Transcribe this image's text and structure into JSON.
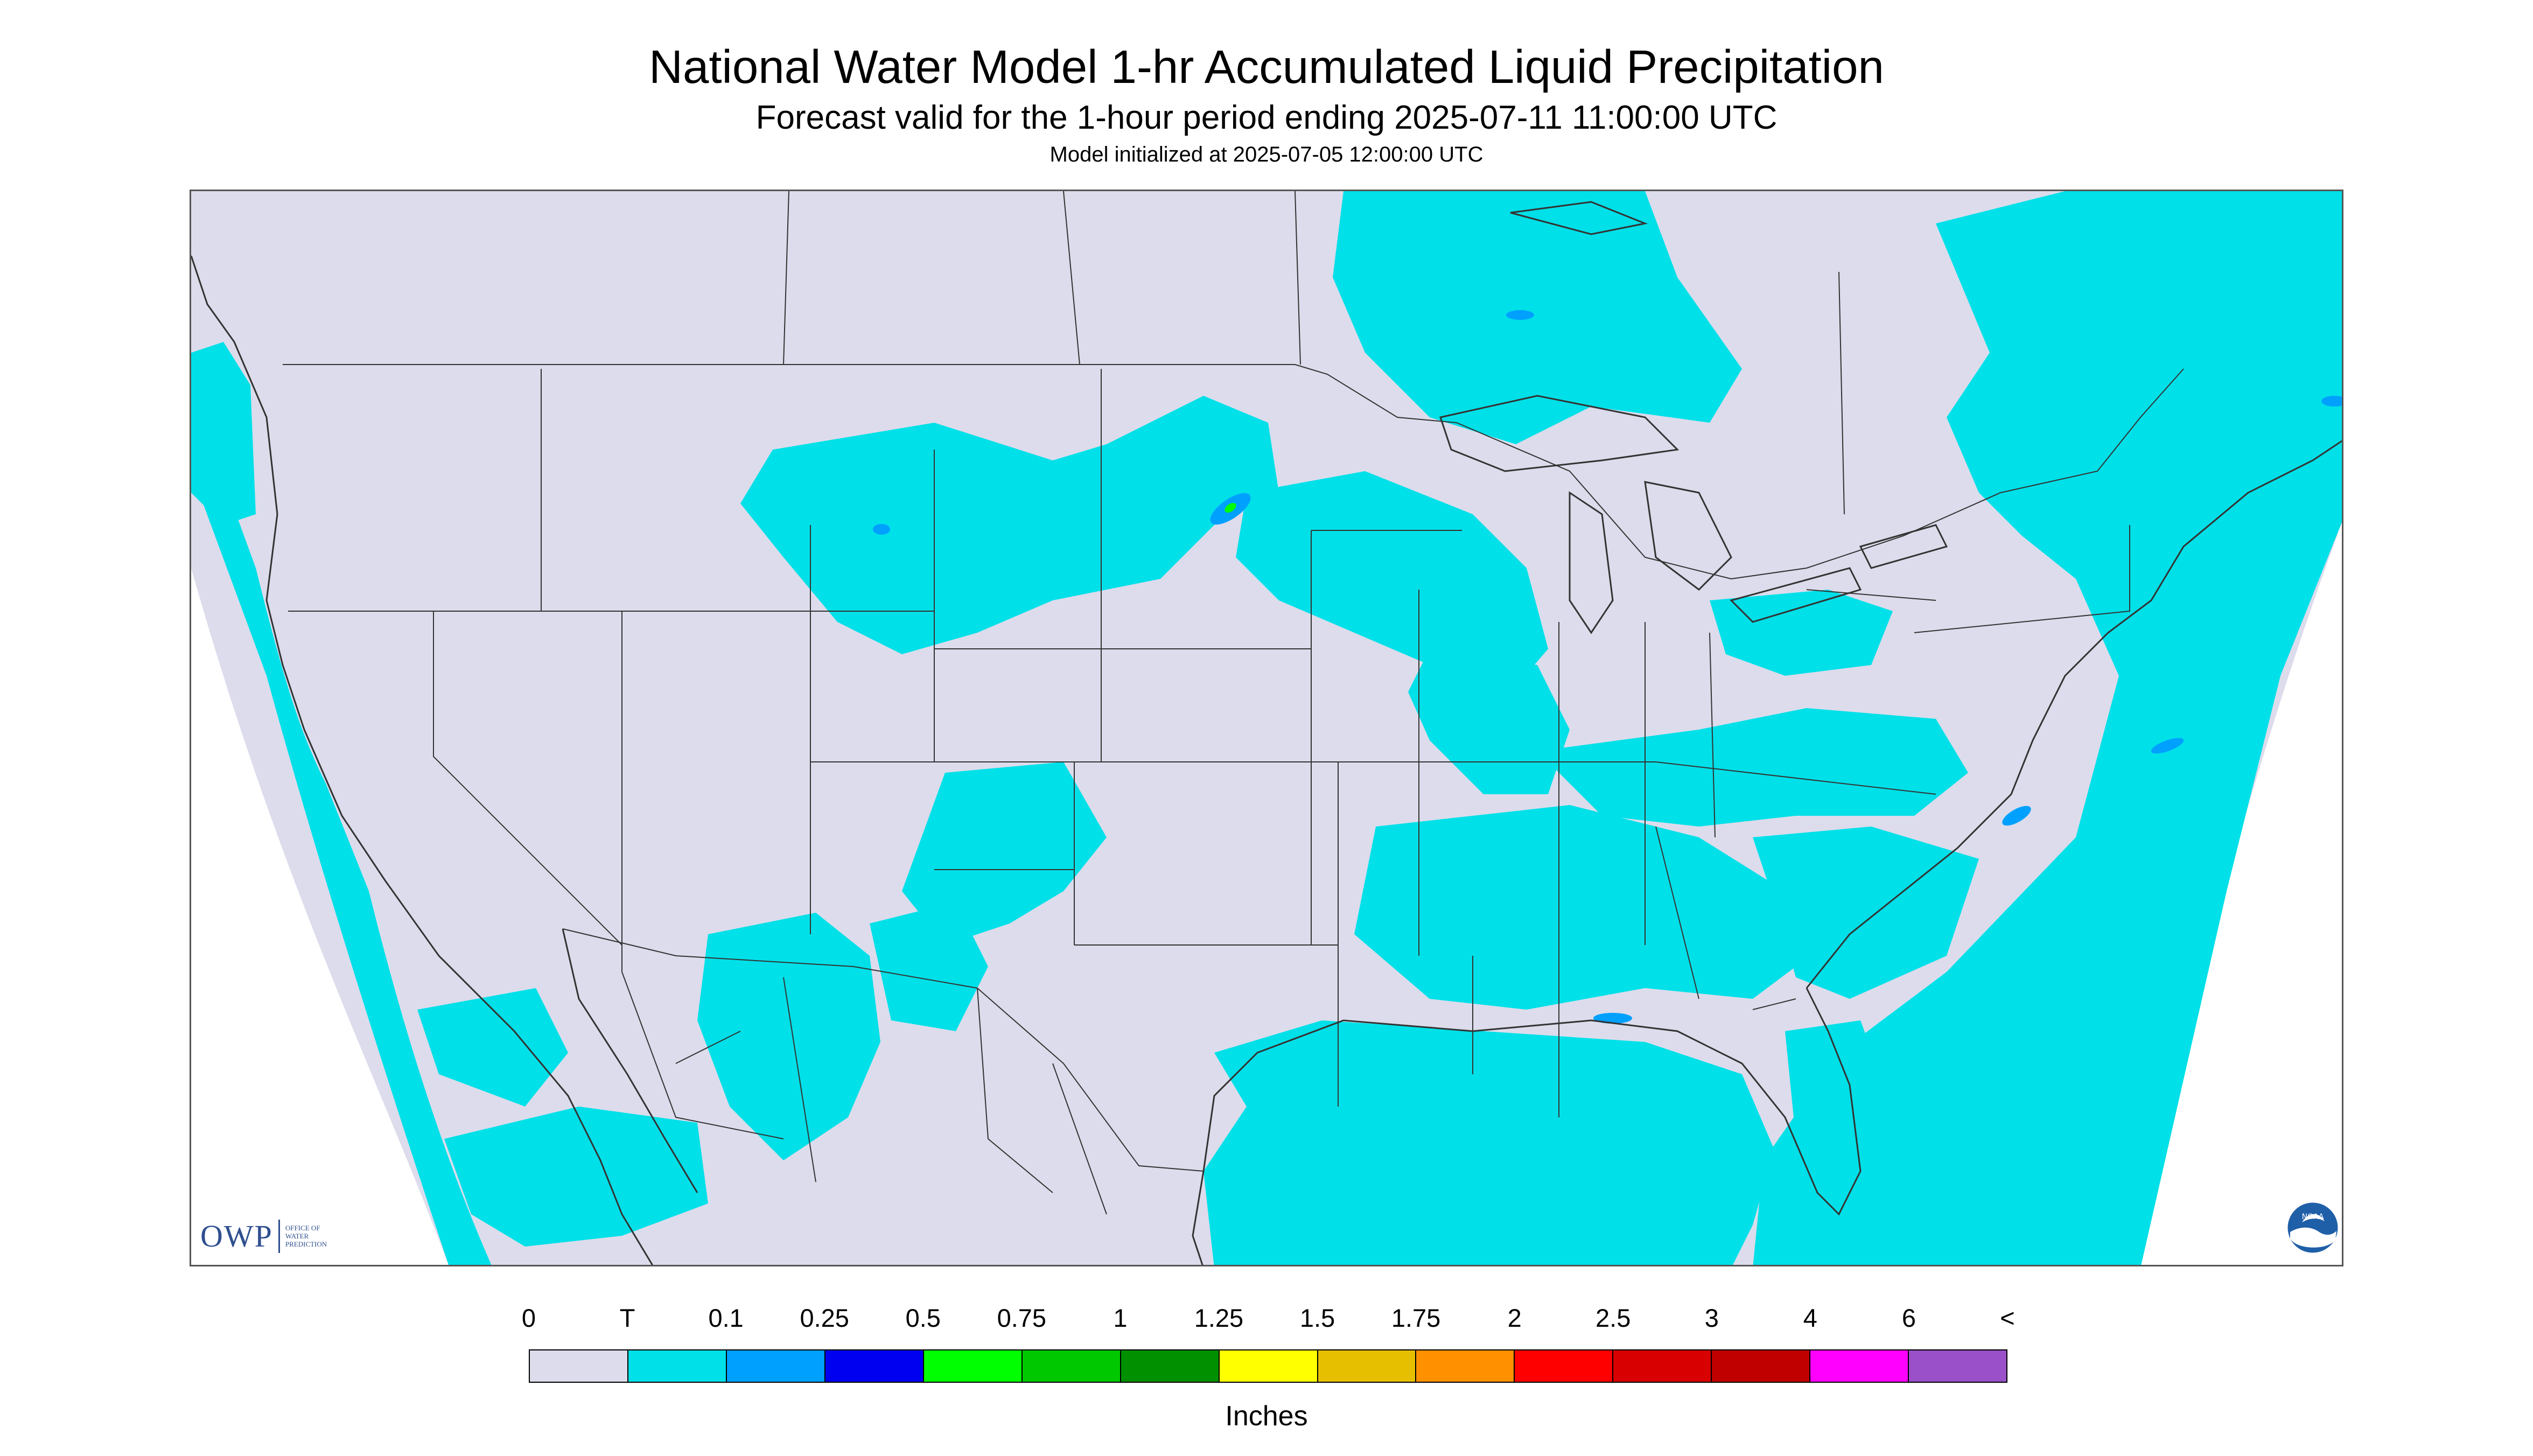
{
  "title": "National Water Model 1-hr Accumulated Liquid Precipitation",
  "subtitle": "Forecast valid for the 1-hour period ending 2025-07-11 11:00:00 UTC",
  "init_line": "Model initialized at 2025-07-05 12:00:00 UTC",
  "logo": {
    "owp_letters": "OWP",
    "owp_org_lines": [
      "OFFICE OF",
      "WATER",
      "PREDICTION"
    ],
    "noaa": "NOAA"
  },
  "legend": {
    "units": "Inches",
    "labels": [
      "0",
      "T",
      "0.1",
      "0.25",
      "0.5",
      "0.75",
      "1",
      "1.25",
      "1.5",
      "1.75",
      "2",
      "2.5",
      "3",
      "4",
      "6",
      "<"
    ],
    "colors": [
      "#dcdcec",
      "#00e0e8",
      "#00a0ff",
      "#0000f0",
      "#00ff00",
      "#00c800",
      "#009000",
      "#ffff00",
      "#e6c000",
      "#ff9000",
      "#ff0000",
      "#d80000",
      "#c00000",
      "#ff00ff",
      "#9a50c8"
    ]
  },
  "map": {
    "land_color": "#dcdcec",
    "precip_trace_color": "#00e0e8",
    "precip_light_color": "#00a0ff",
    "outside_domain_color": "#ffffff",
    "border_color": "#333333"
  }
}
